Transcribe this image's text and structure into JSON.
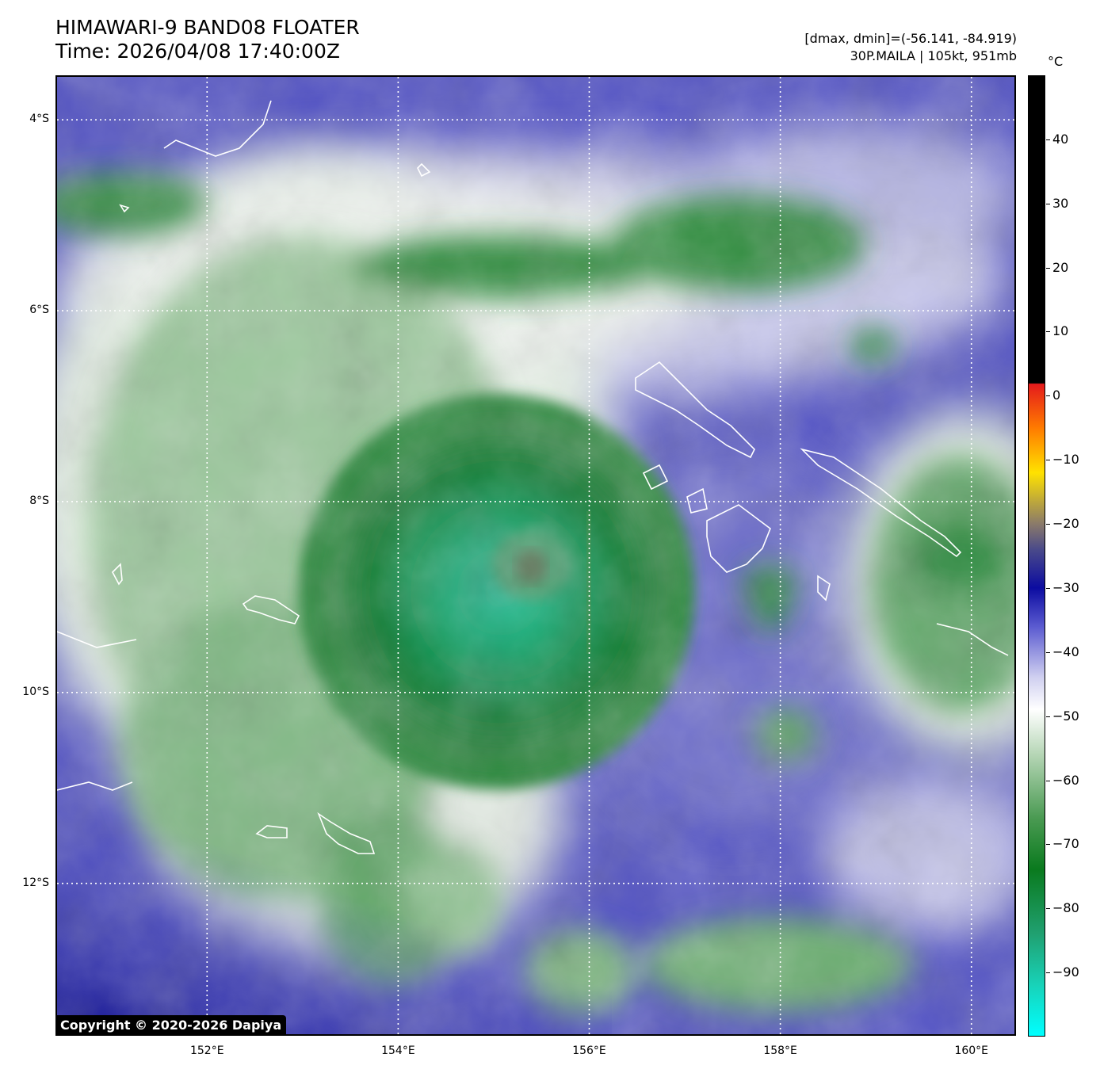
{
  "title": {
    "line1": "HIMAWARI-9 BAND08 FLOATER",
    "line2": "Time: 2026/04/08 17:40:00Z"
  },
  "info": {
    "line1": "[dmax, dmin]=(-56.141, -84.919)",
    "line2": "30P.MAILA | 105kt, 951mb"
  },
  "map": {
    "lat_labels": [
      "4°S",
      "6°S",
      "8°S",
      "10°S",
      "12°S"
    ],
    "lon_labels": [
      "152°E",
      "154°E",
      "156°E",
      "158°E",
      "160°E"
    ],
    "lat_values": [
      -4,
      -6,
      -8,
      -10,
      -12
    ],
    "lon_values": [
      152,
      154,
      156,
      158,
      160
    ],
    "extent": {
      "lon_min": 150.43,
      "lon_max": 160.45,
      "lat_min": -13.58,
      "lat_max": -3.55
    },
    "storm_center": {
      "lon": 155.4,
      "lat": -8.6
    },
    "gridlines": true
  },
  "copyright": "Copyright © 2020-2026 Dapiya",
  "colorbar": {
    "unit": "°C",
    "tick_labels": [
      "40",
      "30",
      "20",
      "10",
      "0",
      "−10",
      "−20",
      "−30",
      "−40",
      "−50",
      "−60",
      "−70",
      "−80",
      "−90"
    ],
    "tick_values": [
      40,
      30,
      20,
      10,
      0,
      -10,
      -20,
      -30,
      -40,
      -50,
      -60,
      -70,
      -80,
      -90
    ],
    "range": [
      -100,
      50
    ]
  },
  "colors": {
    "cold_cyan": "#00f2e6",
    "deep_green": "#0c7a2e",
    "light_green": "#9ec9a0",
    "white": "#ffffff",
    "blue": "#4848c0",
    "navy": "#0a0a90",
    "black": "#000000"
  }
}
